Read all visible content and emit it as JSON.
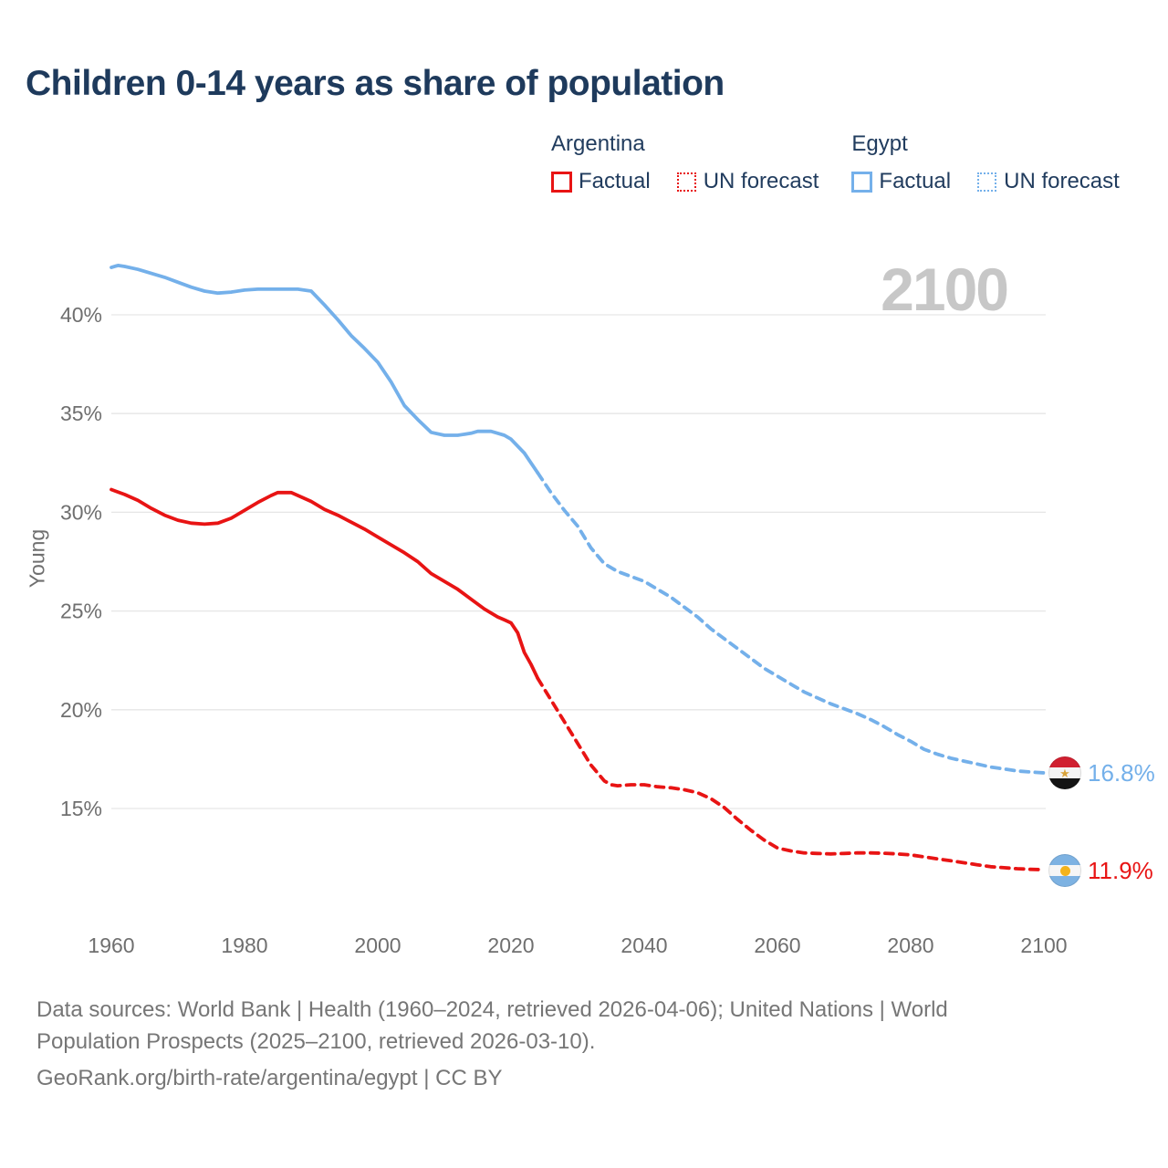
{
  "header": {
    "title": "Children 0-14 years as share of population"
  },
  "legend": {
    "argentina": {
      "label": "Argentina",
      "factual": "Factual",
      "forecast": "UN forecast",
      "color": "#e81414"
    },
    "egypt": {
      "label": "Egypt",
      "factual": "Factual",
      "forecast": "UN forecast",
      "color": "#74b0ea"
    }
  },
  "chart_data": {
    "type": "line",
    "title": "Children 0-14 years as share of population",
    "ylabel": "Young",
    "xlabel": "",
    "y_ticks": [
      15,
      20,
      25,
      30,
      35,
      40
    ],
    "y_tick_suffix": "%",
    "x_ticks": [
      1960,
      1980,
      2000,
      2020,
      2040,
      2060,
      2080,
      2100
    ],
    "xlim": [
      1960,
      2100
    ],
    "ylim": [
      11,
      43
    ],
    "grid": "horizontal",
    "legend_position": "top-right",
    "watermark": "2100",
    "series": [
      {
        "id": "egypt-factual",
        "name": "Egypt Factual",
        "country": "Egypt",
        "segment": "Factual",
        "color": "#74b0ea",
        "style": "solid",
        "points": [
          [
            1960,
            42.4
          ],
          [
            1961,
            42.5
          ],
          [
            1962,
            42.45
          ],
          [
            1964,
            42.3
          ],
          [
            1966,
            42.1
          ],
          [
            1968,
            41.9
          ],
          [
            1970,
            41.65
          ],
          [
            1972,
            41.4
          ],
          [
            1974,
            41.2
          ],
          [
            1976,
            41.1
          ],
          [
            1978,
            41.15
          ],
          [
            1980,
            41.25
          ],
          [
            1982,
            41.3
          ],
          [
            1984,
            41.3
          ],
          [
            1986,
            41.3
          ],
          [
            1988,
            41.3
          ],
          [
            1990,
            41.2
          ],
          [
            1992,
            40.5
          ],
          [
            1994,
            39.75
          ],
          [
            1996,
            38.95
          ],
          [
            1998,
            38.3
          ],
          [
            2000,
            37.6
          ],
          [
            2002,
            36.6
          ],
          [
            2004,
            35.4
          ],
          [
            2006,
            34.7
          ],
          [
            2008,
            34.05
          ],
          [
            2010,
            33.9
          ],
          [
            2012,
            33.9
          ],
          [
            2014,
            34.0
          ],
          [
            2015,
            34.1
          ],
          [
            2017,
            34.1
          ],
          [
            2018,
            34.0
          ],
          [
            2019,
            33.9
          ],
          [
            2020,
            33.7
          ],
          [
            2022,
            33.0
          ],
          [
            2023,
            32.5
          ],
          [
            2024,
            32.0
          ]
        ]
      },
      {
        "id": "egypt-forecast",
        "name": "Egypt UN forecast",
        "country": "Egypt",
        "segment": "UN forecast",
        "color": "#74b0ea",
        "style": "dashed",
        "points": [
          [
            2024,
            32.0
          ],
          [
            2026,
            31.0
          ],
          [
            2028,
            30.1
          ],
          [
            2030,
            29.3
          ],
          [
            2032,
            28.2
          ],
          [
            2034,
            27.4
          ],
          [
            2036,
            27.0
          ],
          [
            2038,
            26.75
          ],
          [
            2040,
            26.5
          ],
          [
            2042,
            26.1
          ],
          [
            2044,
            25.7
          ],
          [
            2046,
            25.2
          ],
          [
            2048,
            24.7
          ],
          [
            2050,
            24.1
          ],
          [
            2052,
            23.6
          ],
          [
            2054,
            23.1
          ],
          [
            2056,
            22.6
          ],
          [
            2058,
            22.1
          ],
          [
            2060,
            21.7
          ],
          [
            2062,
            21.3
          ],
          [
            2064,
            20.9
          ],
          [
            2066,
            20.6
          ],
          [
            2068,
            20.3
          ],
          [
            2070,
            20.05
          ],
          [
            2072,
            19.8
          ],
          [
            2074,
            19.5
          ],
          [
            2076,
            19.15
          ],
          [
            2078,
            18.75
          ],
          [
            2080,
            18.4
          ],
          [
            2082,
            18.0
          ],
          [
            2084,
            17.75
          ],
          [
            2086,
            17.55
          ],
          [
            2088,
            17.4
          ],
          [
            2090,
            17.25
          ],
          [
            2092,
            17.1
          ],
          [
            2094,
            17.0
          ],
          [
            2096,
            16.9
          ],
          [
            2098,
            16.85
          ],
          [
            2100,
            16.8
          ]
        ]
      },
      {
        "id": "argentina-factual",
        "name": "Argentina Factual",
        "country": "Argentina",
        "segment": "Factual",
        "color": "#e81414",
        "style": "solid",
        "points": [
          [
            1960,
            31.15
          ],
          [
            1962,
            30.9
          ],
          [
            1964,
            30.6
          ],
          [
            1966,
            30.2
          ],
          [
            1968,
            29.85
          ],
          [
            1970,
            29.6
          ],
          [
            1972,
            29.45
          ],
          [
            1974,
            29.4
          ],
          [
            1976,
            29.45
          ],
          [
            1978,
            29.7
          ],
          [
            1980,
            30.1
          ],
          [
            1982,
            30.5
          ],
          [
            1984,
            30.85
          ],
          [
            1985,
            31.0
          ],
          [
            1987,
            31.0
          ],
          [
            1988,
            30.85
          ],
          [
            1990,
            30.55
          ],
          [
            1992,
            30.15
          ],
          [
            1994,
            29.85
          ],
          [
            1996,
            29.5
          ],
          [
            1998,
            29.15
          ],
          [
            2000,
            28.75
          ],
          [
            2002,
            28.35
          ],
          [
            2004,
            27.95
          ],
          [
            2006,
            27.5
          ],
          [
            2008,
            26.9
          ],
          [
            2010,
            26.5
          ],
          [
            2012,
            26.1
          ],
          [
            2014,
            25.6
          ],
          [
            2016,
            25.1
          ],
          [
            2018,
            24.7
          ],
          [
            2019,
            24.55
          ],
          [
            2020,
            24.4
          ],
          [
            2021,
            23.9
          ],
          [
            2022,
            22.9
          ],
          [
            2023,
            22.3
          ],
          [
            2024,
            21.6
          ]
        ]
      },
      {
        "id": "argentina-forecast",
        "name": "Argentina UN forecast",
        "country": "Argentina",
        "segment": "UN forecast",
        "color": "#e81414",
        "style": "dashed",
        "points": [
          [
            2024,
            21.6
          ],
          [
            2026,
            20.5
          ],
          [
            2028,
            19.4
          ],
          [
            2030,
            18.3
          ],
          [
            2032,
            17.2
          ],
          [
            2034,
            16.4
          ],
          [
            2035,
            16.2
          ],
          [
            2036,
            16.15
          ],
          [
            2038,
            16.2
          ],
          [
            2040,
            16.2
          ],
          [
            2042,
            16.1
          ],
          [
            2044,
            16.05
          ],
          [
            2046,
            15.95
          ],
          [
            2048,
            15.8
          ],
          [
            2050,
            15.5
          ],
          [
            2052,
            15.05
          ],
          [
            2054,
            14.45
          ],
          [
            2056,
            13.9
          ],
          [
            2058,
            13.4
          ],
          [
            2060,
            13.0
          ],
          [
            2062,
            12.85
          ],
          [
            2064,
            12.75
          ],
          [
            2066,
            12.72
          ],
          [
            2068,
            12.7
          ],
          [
            2070,
            12.72
          ],
          [
            2072,
            12.75
          ],
          [
            2074,
            12.75
          ],
          [
            2076,
            12.73
          ],
          [
            2078,
            12.7
          ],
          [
            2080,
            12.65
          ],
          [
            2082,
            12.55
          ],
          [
            2084,
            12.45
          ],
          [
            2086,
            12.35
          ],
          [
            2088,
            12.25
          ],
          [
            2090,
            12.15
          ],
          [
            2092,
            12.05
          ],
          [
            2094,
            12.0
          ],
          [
            2096,
            11.95
          ],
          [
            2098,
            11.92
          ],
          [
            2100,
            11.9
          ]
        ]
      }
    ],
    "end_labels": [
      {
        "country": "Egypt",
        "value": "16.8%",
        "color": "#74b0ea"
      },
      {
        "country": "Argentina",
        "value": "11.9%",
        "color": "#e81414"
      }
    ]
  },
  "footer": {
    "line1": "Data sources: World Bank | Health (1960–2024, retrieved 2026-04-06); United Nations | World",
    "line2": "Population Prospects (2025–2100, retrieved 2026-03-10).",
    "line3": "GeoRank.org/birth-rate/argentina/egypt | CC BY"
  }
}
